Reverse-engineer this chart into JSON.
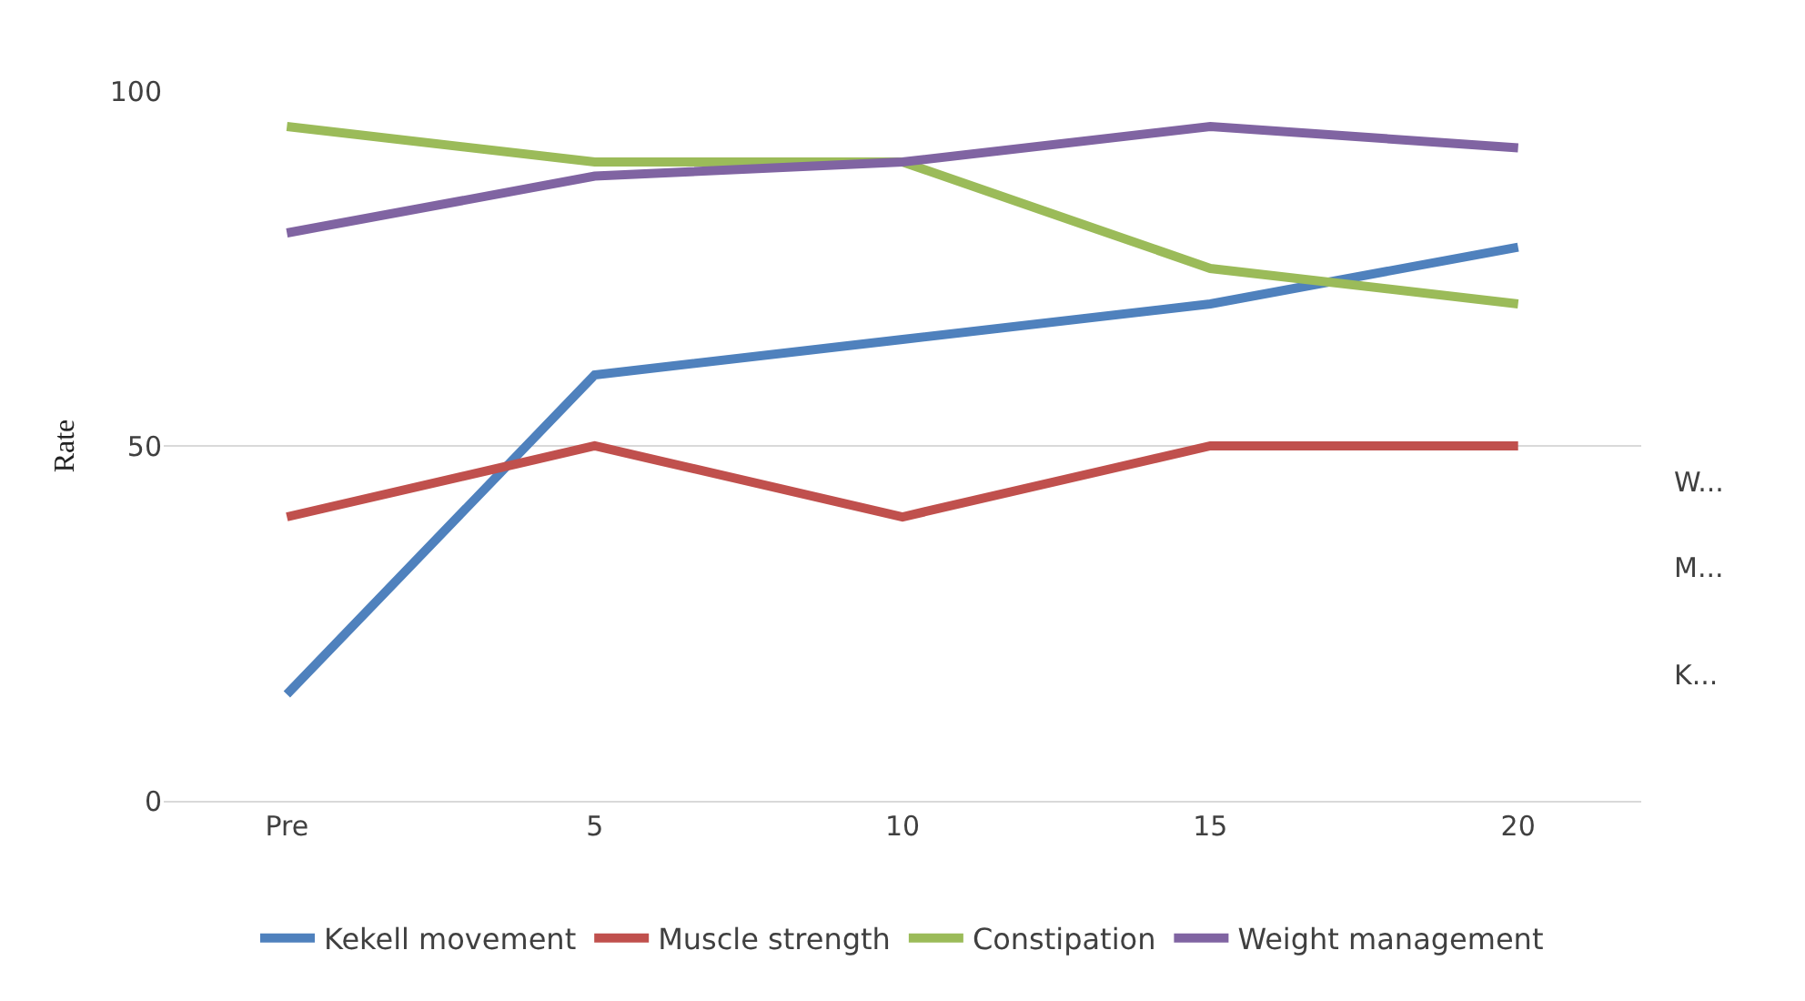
{
  "chart_data": {
    "type": "line",
    "ylabel": "Rate",
    "categories": [
      "Pre",
      "5",
      "10",
      "15",
      "20"
    ],
    "series": [
      {
        "name": "Kekell movement",
        "color": "#4f81bd",
        "values": [
          15,
          60,
          65,
          70,
          78
        ]
      },
      {
        "name": "Muscle strength",
        "color": "#c0504d",
        "values": [
          40,
          50,
          40,
          50,
          50
        ]
      },
      {
        "name": "Constipation",
        "color": "#9bbb59",
        "values": [
          95,
          90,
          90,
          75,
          70
        ]
      },
      {
        "name": "Weight management",
        "color": "#8064a2",
        "values": [
          80,
          88,
          90,
          95,
          92
        ]
      }
    ],
    "ylim": [
      0,
      100
    ],
    "yticks": [
      0,
      50,
      100
    ],
    "grid": "y",
    "legend": "bottom",
    "marker": "none",
    "line_style": "solid",
    "annotations": [
      "W...",
      "M...",
      "K..."
    ]
  }
}
